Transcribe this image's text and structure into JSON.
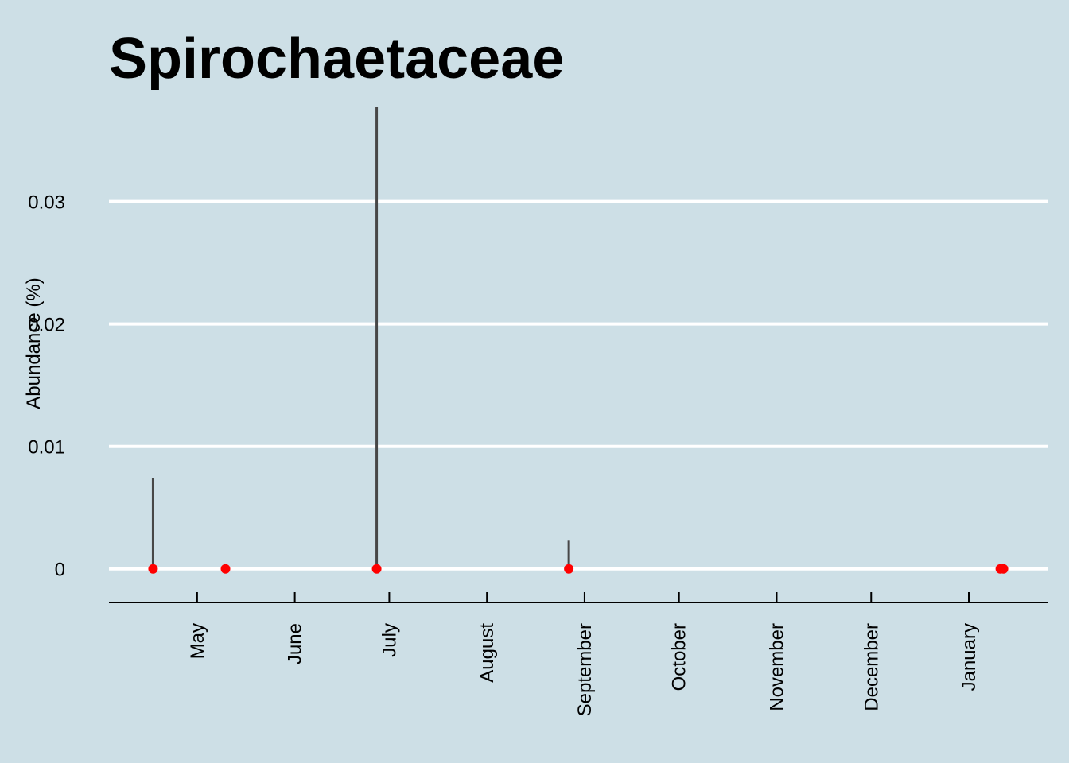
{
  "chart_data": {
    "type": "scatter",
    "title": "Spirochaetaceae",
    "xlabel": "",
    "ylabel": "Abundance (%)",
    "x_type": "date",
    "xlim": [
      "2011-04-03",
      "2012-01-26"
    ],
    "ylim": [
      -0.0019,
      0.0377
    ],
    "y_ticks": [
      0,
      0.01,
      0.02,
      0.03
    ],
    "y_tick_labels": [
      "0",
      "0.01",
      "0.02",
      "0.03"
    ],
    "x_ticks": [
      "2011-05-01",
      "2011-06-01",
      "2011-07-01",
      "2011-08-01",
      "2011-09-01",
      "2011-10-01",
      "2011-11-01",
      "2011-12-01",
      "2012-01-01"
    ],
    "x_tick_labels": [
      "May",
      "June",
      "July",
      "August",
      "September",
      "October",
      "November",
      "December",
      "January"
    ],
    "grid": "horizontal major lines",
    "legend": "none",
    "points": [
      {
        "x": "2011-04-17",
        "y": 0,
        "y_max": 0.0074
      },
      {
        "x": "2011-05-10",
        "y": 0,
        "y_max": 0
      },
      {
        "x": "2011-06-27",
        "y": 0,
        "y_max": 0.0377
      },
      {
        "x": "2011-08-27",
        "y": 0,
        "y_max": 0.0023
      },
      {
        "x": "2012-01-11",
        "y": 0,
        "y_max": 0
      },
      {
        "x": "2012-01-12",
        "y": 0,
        "y_max": 0
      }
    ],
    "colors": {
      "background": "#cddfe6",
      "gridline": "#ffffff",
      "point": "#ff0000",
      "range_line": "#474747",
      "axis": "#000000"
    }
  }
}
